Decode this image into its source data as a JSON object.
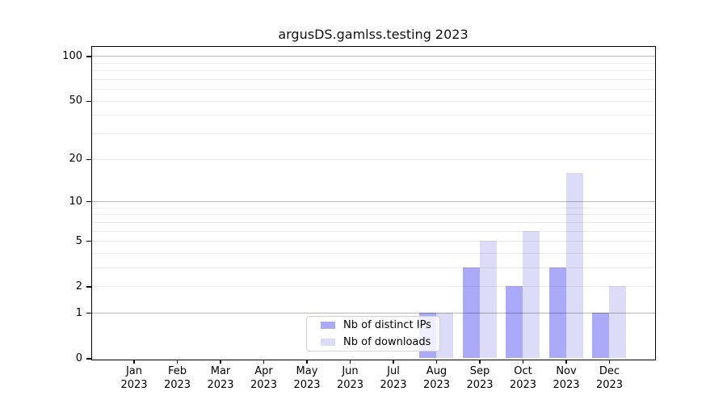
{
  "chart_data": {
    "type": "bar",
    "title": "argusDS.gamlss.testing 2023",
    "categories": [
      "Jan",
      "Feb",
      "Mar",
      "Apr",
      "May",
      "Jun",
      "Jul",
      "Aug",
      "Sep",
      "Oct",
      "Nov",
      "Dec"
    ],
    "year": "2023",
    "series": [
      {
        "name": "Nb of distinct IPs",
        "slug": "nb-of-distinct-ips",
        "color": "#aaaaf8",
        "values": [
          0,
          0,
          0,
          0,
          0,
          0,
          0,
          1,
          3,
          2,
          3,
          1
        ]
      },
      {
        "name": "Nb of downloads",
        "slug": "nb-of-downloads",
        "color": "#dddcf8",
        "values": [
          0,
          0,
          0,
          0,
          0,
          0,
          0,
          1,
          5,
          6,
          16,
          2
        ]
      }
    ],
    "y_axis": {
      "scale": "log1p",
      "ticks": [
        0,
        1,
        2,
        5,
        10,
        20,
        50,
        100
      ],
      "max": 116,
      "minor_gridlines": [
        2,
        3,
        4,
        5,
        6,
        7,
        8,
        9,
        20,
        30,
        40,
        50,
        60,
        70,
        80,
        90
      ],
      "major_gridlines": [
        1,
        10,
        100
      ]
    },
    "x_axis": {
      "grid": false
    },
    "legend": {
      "position": "lower center"
    },
    "colors": {
      "spine": "#000000",
      "major_grid": "#b0b0b0",
      "minor_grid": "#ebebeb",
      "background": "#ffffff"
    }
  }
}
